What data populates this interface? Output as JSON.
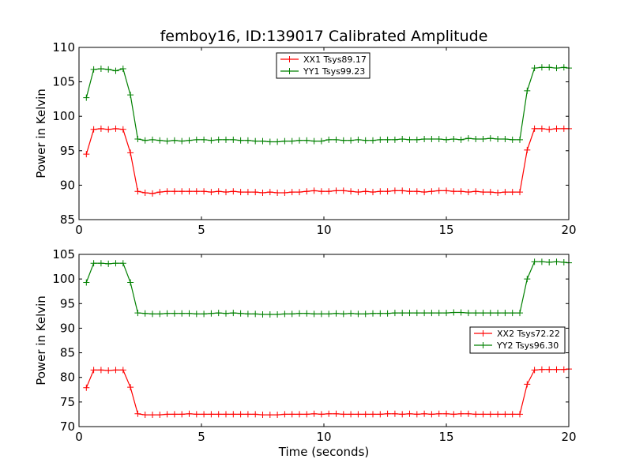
{
  "colors": {
    "red": "#ff0000",
    "green": "#008000",
    "axis": "#000000"
  },
  "chart_data": [
    {
      "type": "line",
      "title": "femboy16, ID:139017 Calibrated Amplitude",
      "xlabel": "",
      "ylabel": "Power in Kelvin",
      "xlim": [
        0,
        20
      ],
      "ylim": [
        85,
        110
      ],
      "xticks": [
        0,
        5,
        10,
        15,
        20
      ],
      "yticks": [
        85,
        90,
        95,
        100,
        105,
        110
      ],
      "legend_position": "top-center",
      "series": [
        {
          "name": "XX1 Tsys89.17",
          "color": "#ff0000",
          "x": [
            0.3,
            0.6,
            0.9,
            1.2,
            1.5,
            1.8,
            2.1,
            2.4,
            2.7,
            3.0,
            3.3,
            3.6,
            3.9,
            4.2,
            4.5,
            4.8,
            5.1,
            5.4,
            5.7,
            6.0,
            6.3,
            6.6,
            6.9,
            7.2,
            7.5,
            7.8,
            8.1,
            8.4,
            8.7,
            9.0,
            9.3,
            9.6,
            9.9,
            10.2,
            10.5,
            10.8,
            11.1,
            11.4,
            11.7,
            12.0,
            12.3,
            12.6,
            12.9,
            13.2,
            13.5,
            13.8,
            14.1,
            14.4,
            14.7,
            15.0,
            15.3,
            15.6,
            15.9,
            16.2,
            16.5,
            16.8,
            17.1,
            17.4,
            17.7,
            18.0,
            18.3,
            18.6,
            18.9,
            19.2,
            19.5,
            19.8,
            20.0
          ],
          "y": [
            94.5,
            98.1,
            98.2,
            98.1,
            98.2,
            98.1,
            94.7,
            89.1,
            88.9,
            88.8,
            89.0,
            89.1,
            89.1,
            89.1,
            89.1,
            89.1,
            89.1,
            89.0,
            89.1,
            89.0,
            89.1,
            89.0,
            89.0,
            89.0,
            88.9,
            89.0,
            88.9,
            88.9,
            89.0,
            89.0,
            89.1,
            89.2,
            89.1,
            89.1,
            89.2,
            89.2,
            89.1,
            89.0,
            89.1,
            89.0,
            89.1,
            89.1,
            89.2,
            89.2,
            89.1,
            89.1,
            89.0,
            89.1,
            89.2,
            89.2,
            89.1,
            89.1,
            89.0,
            89.1,
            89.0,
            89.0,
            88.9,
            89.0,
            89.0,
            89.0,
            95.1,
            98.2,
            98.2,
            98.1,
            98.2,
            98.2,
            98.2
          ]
        },
        {
          "name": "YY1 Tsys99.23",
          "color": "#008000",
          "x": [
            0.3,
            0.6,
            0.9,
            1.2,
            1.5,
            1.8,
            2.1,
            2.4,
            2.7,
            3.0,
            3.3,
            3.6,
            3.9,
            4.2,
            4.5,
            4.8,
            5.1,
            5.4,
            5.7,
            6.0,
            6.3,
            6.6,
            6.9,
            7.2,
            7.5,
            7.8,
            8.1,
            8.4,
            8.7,
            9.0,
            9.3,
            9.6,
            9.9,
            10.2,
            10.5,
            10.8,
            11.1,
            11.4,
            11.7,
            12.0,
            12.3,
            12.6,
            12.9,
            13.2,
            13.5,
            13.8,
            14.1,
            14.4,
            14.7,
            15.0,
            15.3,
            15.6,
            15.9,
            16.2,
            16.5,
            16.8,
            17.1,
            17.4,
            17.7,
            18.0,
            18.3,
            18.6,
            18.9,
            19.2,
            19.5,
            19.8,
            20.0
          ],
          "y": [
            102.7,
            106.8,
            106.9,
            106.8,
            106.6,
            106.9,
            103.1,
            96.7,
            96.5,
            96.6,
            96.5,
            96.4,
            96.5,
            96.4,
            96.5,
            96.6,
            96.6,
            96.5,
            96.6,
            96.6,
            96.6,
            96.5,
            96.5,
            96.4,
            96.4,
            96.3,
            96.3,
            96.4,
            96.4,
            96.5,
            96.5,
            96.4,
            96.4,
            96.6,
            96.6,
            96.5,
            96.5,
            96.6,
            96.5,
            96.5,
            96.6,
            96.6,
            96.6,
            96.7,
            96.6,
            96.6,
            96.7,
            96.7,
            96.7,
            96.6,
            96.7,
            96.6,
            96.8,
            96.7,
            96.7,
            96.8,
            96.7,
            96.7,
            96.6,
            96.6,
            103.7,
            107.0,
            107.1,
            107.1,
            107.0,
            107.1,
            107.0
          ]
        }
      ]
    },
    {
      "type": "line",
      "title": "",
      "xlabel": "Time (seconds)",
      "ylabel": "Power in Kelvin",
      "xlim": [
        0,
        20
      ],
      "ylim": [
        70,
        105
      ],
      "xticks": [
        0,
        5,
        10,
        15,
        20
      ],
      "yticks": [
        70,
        75,
        80,
        85,
        90,
        95,
        100,
        105
      ],
      "legend_position": "center-right",
      "series": [
        {
          "name": "XX2 Tsys72.22",
          "color": "#ff0000",
          "x": [
            0.3,
            0.6,
            0.9,
            1.2,
            1.5,
            1.8,
            2.1,
            2.4,
            2.7,
            3.0,
            3.3,
            3.6,
            3.9,
            4.2,
            4.5,
            4.8,
            5.1,
            5.4,
            5.7,
            6.0,
            6.3,
            6.6,
            6.9,
            7.2,
            7.5,
            7.8,
            8.1,
            8.4,
            8.7,
            9.0,
            9.3,
            9.6,
            9.9,
            10.2,
            10.5,
            10.8,
            11.1,
            11.4,
            11.7,
            12.0,
            12.3,
            12.6,
            12.9,
            13.2,
            13.5,
            13.8,
            14.1,
            14.4,
            14.7,
            15.0,
            15.3,
            15.6,
            15.9,
            16.2,
            16.5,
            16.8,
            17.1,
            17.4,
            17.7,
            18.0,
            18.3,
            18.6,
            18.9,
            19.2,
            19.5,
            19.8,
            20.0
          ],
          "y": [
            77.9,
            81.5,
            81.5,
            81.4,
            81.5,
            81.5,
            78.0,
            72.6,
            72.4,
            72.4,
            72.4,
            72.5,
            72.5,
            72.5,
            72.6,
            72.5,
            72.5,
            72.5,
            72.5,
            72.5,
            72.5,
            72.5,
            72.5,
            72.5,
            72.4,
            72.4,
            72.4,
            72.5,
            72.5,
            72.5,
            72.5,
            72.6,
            72.5,
            72.6,
            72.6,
            72.5,
            72.5,
            72.5,
            72.5,
            72.5,
            72.5,
            72.6,
            72.6,
            72.5,
            72.6,
            72.5,
            72.6,
            72.5,
            72.6,
            72.6,
            72.5,
            72.6,
            72.6,
            72.5,
            72.5,
            72.5,
            72.5,
            72.5,
            72.5,
            72.5,
            78.6,
            81.5,
            81.6,
            81.6,
            81.6,
            81.6,
            81.7
          ]
        },
        {
          "name": "YY2 Tsys96.30",
          "color": "#008000",
          "x": [
            0.3,
            0.6,
            0.9,
            1.2,
            1.5,
            1.8,
            2.1,
            2.4,
            2.7,
            3.0,
            3.3,
            3.6,
            3.9,
            4.2,
            4.5,
            4.8,
            5.1,
            5.4,
            5.7,
            6.0,
            6.3,
            6.6,
            6.9,
            7.2,
            7.5,
            7.8,
            8.1,
            8.4,
            8.7,
            9.0,
            9.3,
            9.6,
            9.9,
            10.2,
            10.5,
            10.8,
            11.1,
            11.4,
            11.7,
            12.0,
            12.3,
            12.6,
            12.9,
            13.2,
            13.5,
            13.8,
            14.1,
            14.4,
            14.7,
            15.0,
            15.3,
            15.6,
            15.9,
            16.2,
            16.5,
            16.8,
            17.1,
            17.4,
            17.7,
            18.0,
            18.3,
            18.6,
            18.9,
            19.2,
            19.5,
            19.8,
            20.0
          ],
          "y": [
            99.3,
            103.2,
            103.2,
            103.1,
            103.2,
            103.2,
            99.3,
            93.1,
            93.0,
            92.9,
            92.9,
            93.0,
            93.0,
            93.0,
            93.0,
            92.9,
            92.9,
            93.0,
            93.1,
            93.0,
            93.1,
            93.0,
            92.9,
            92.9,
            92.8,
            92.8,
            92.8,
            92.9,
            92.9,
            93.0,
            93.0,
            92.9,
            92.9,
            92.9,
            93.0,
            92.9,
            93.0,
            92.9,
            92.9,
            93.0,
            93.0,
            93.0,
            93.1,
            93.1,
            93.1,
            93.1,
            93.1,
            93.1,
            93.1,
            93.1,
            93.2,
            93.2,
            93.1,
            93.1,
            93.1,
            93.1,
            93.1,
            93.1,
            93.1,
            93.1,
            100.0,
            103.5,
            103.5,
            103.4,
            103.5,
            103.4,
            103.3
          ]
        }
      ]
    }
  ]
}
